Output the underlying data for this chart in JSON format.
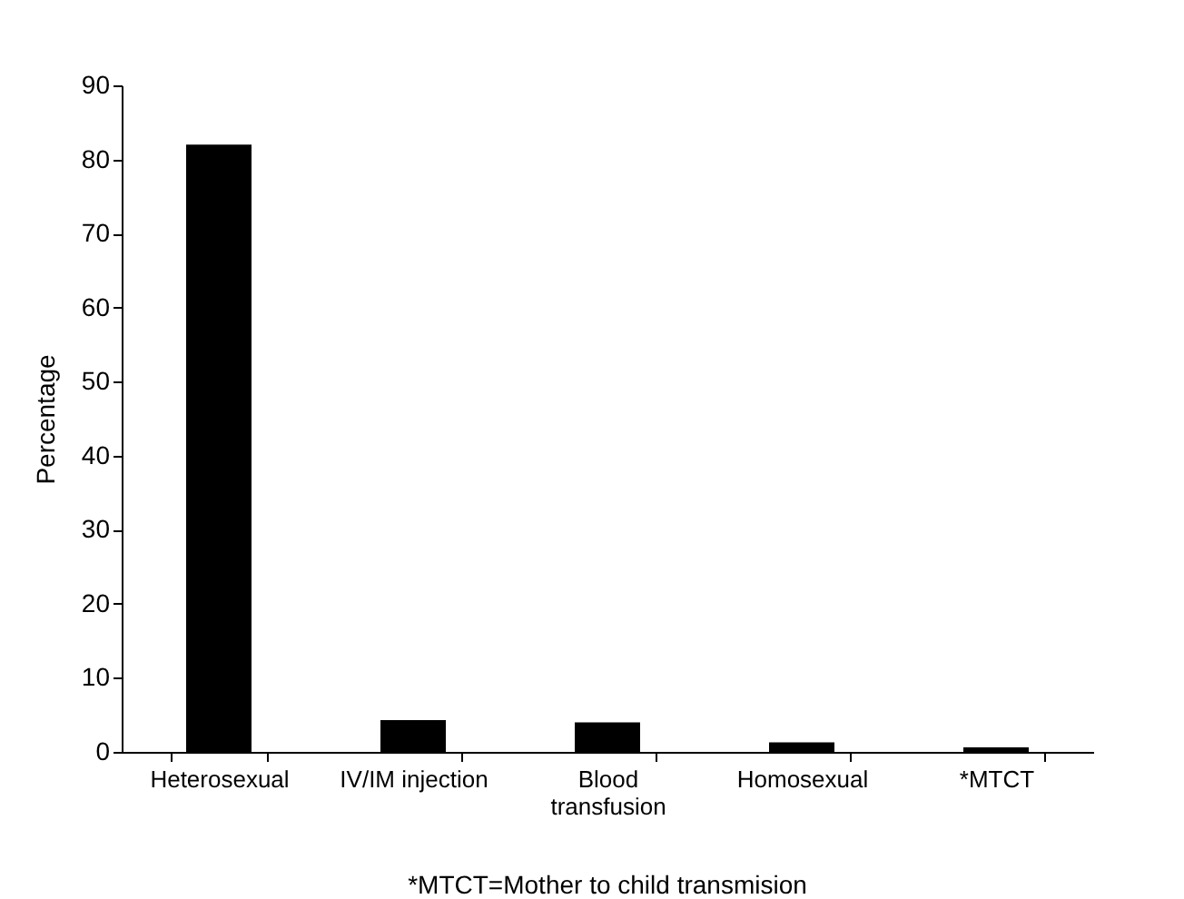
{
  "chart_data": {
    "type": "bar",
    "ylabel": "Percentage",
    "categories": [
      "Heterosexual",
      "IV/IM injection",
      "Blood\ntransfusion",
      "Homosexual",
      "*MTCT"
    ],
    "values": [
      82,
      4.3,
      4,
      1.3,
      0.6
    ],
    "color": "#000000",
    "ylim": [
      0,
      90
    ],
    "yticks": [
      0,
      10,
      20,
      30,
      40,
      50,
      60,
      70,
      80,
      90
    ],
    "grid": false,
    "annotations": [
      "*MTCT=Mother to child transmision"
    ]
  }
}
